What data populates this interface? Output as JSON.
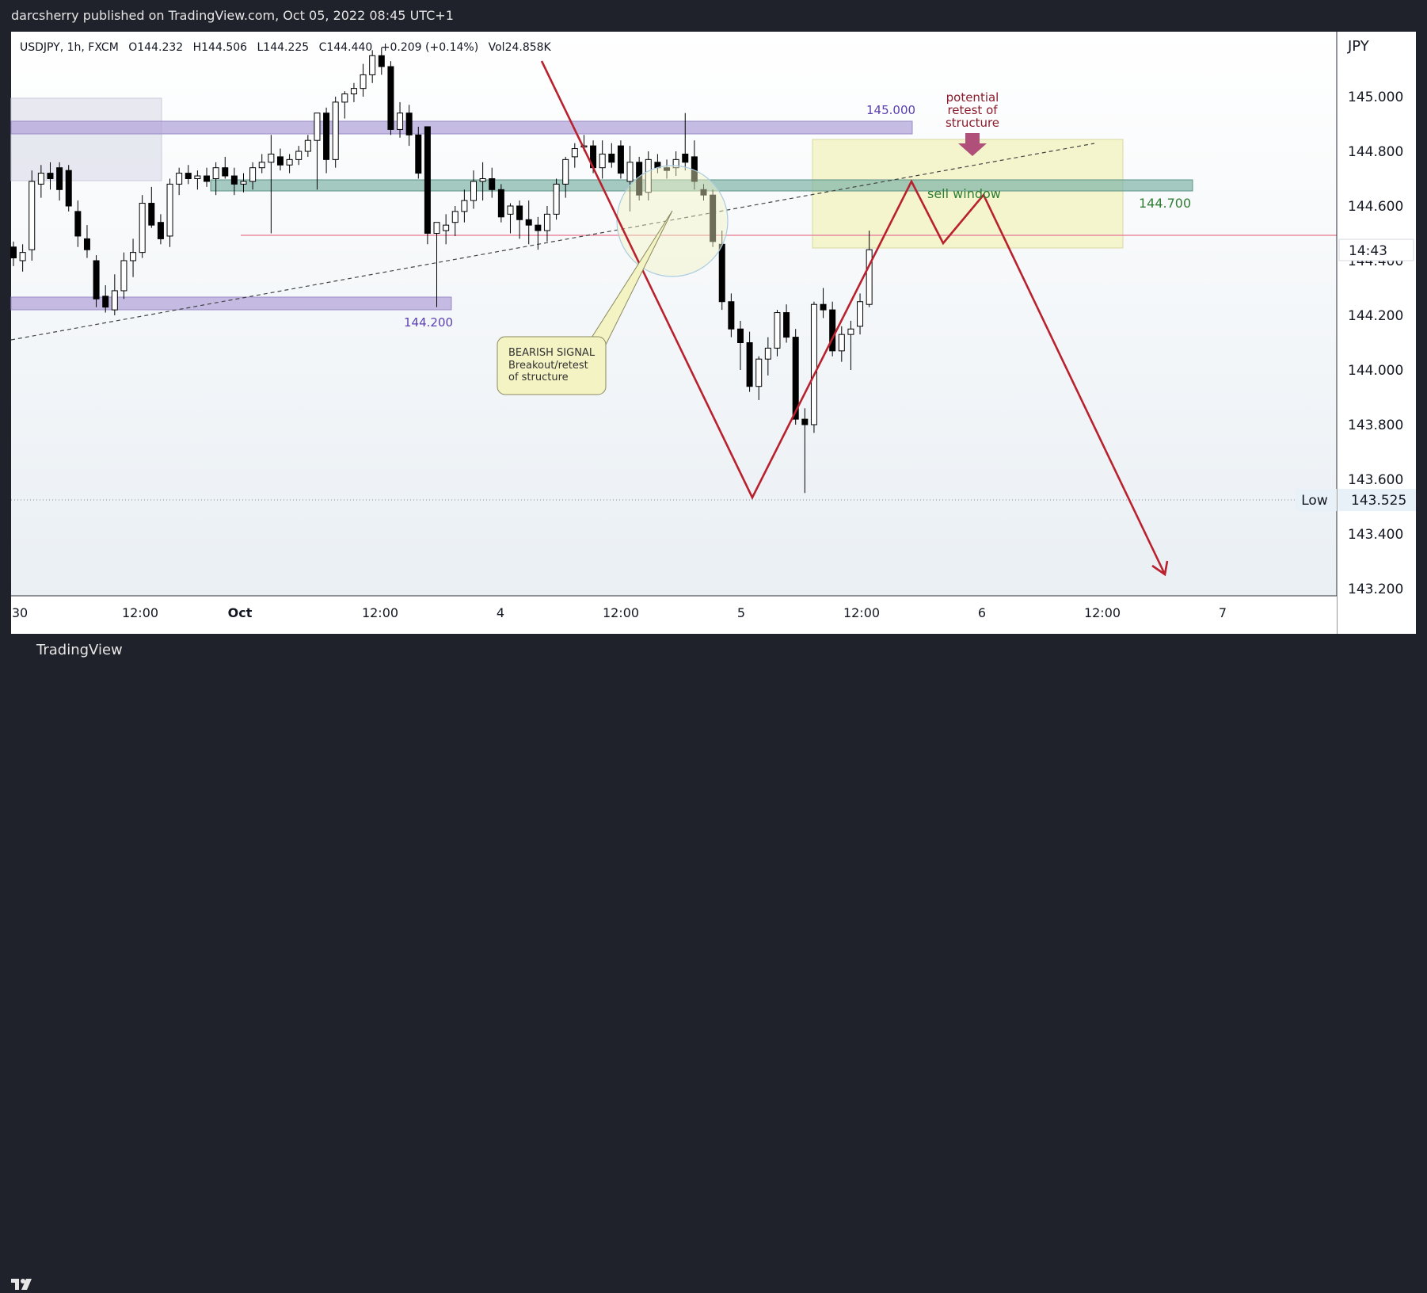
{
  "header": {
    "published": "darcsherry published on TradingView.com, Oct 05, 2022 08:45 UTC+1"
  },
  "legend": {
    "symbol": "USDJPY, 1h, FXCM",
    "open": "O144.232",
    "high": "H144.506",
    "low": "L144.225",
    "close": "C144.440",
    "change": "+0.209 (+0.14%)",
    "volume": "Vol24.858K"
  },
  "price_axis": {
    "currency": "JPY",
    "ticks": [
      "145.000",
      "144.800",
      "144.600",
      "144.400",
      "144.200",
      "144.000",
      "143.800",
      "143.600",
      "143.400",
      "143.200"
    ],
    "current_time": "14:43",
    "low_label": "Low",
    "low_value": "143.525"
  },
  "time_axis": {
    "ticks": [
      "30",
      "12:00",
      "Oct",
      "12:00",
      "4",
      "12:00",
      "5",
      "12:00",
      "6",
      "12:00",
      "7"
    ]
  },
  "annotations": {
    "zone_145": "145.000",
    "zone_1442": "144.200",
    "zone_1447": "144.700",
    "sell_window": "sell window",
    "retest_line1": "potential",
    "retest_line2": "retest of",
    "retest_line3": "structure",
    "signal_line1": "BEARISH SIGNAL",
    "signal_line2": "Breakout/retest",
    "signal_line3": "of structure"
  },
  "branding": {
    "logo": "TradingView"
  },
  "colors": {
    "bg_top": "#ffffff",
    "bg_bottom": "#e8eef3",
    "candle": "#000000",
    "purple_zone": "#b3a6d9",
    "teal_zone": "#7fb3a8",
    "projection": "#b8212d",
    "sell_box": "#f3f3c4",
    "label_purple": "#5b3fb0",
    "label_green": "#2e7d32",
    "label_maroon": "#8b1a2b"
  },
  "chart_data": {
    "type": "candlestick",
    "symbol": "USDJPY",
    "interval": "1h",
    "ylim": [
      143.15,
      145.2
    ],
    "candles": [
      [
        144.45,
        144.47,
        144.38,
        144.41
      ],
      [
        144.4,
        144.46,
        144.36,
        144.43
      ],
      [
        144.44,
        144.73,
        144.4,
        144.69
      ],
      [
        144.68,
        144.75,
        144.63,
        144.72
      ],
      [
        144.72,
        144.76,
        144.66,
        144.7
      ],
      [
        144.74,
        144.76,
        144.62,
        144.66
      ],
      [
        144.73,
        144.75,
        144.58,
        144.6
      ],
      [
        144.58,
        144.62,
        144.45,
        144.49
      ],
      [
        144.48,
        144.53,
        144.41,
        144.44
      ],
      [
        144.4,
        144.42,
        144.23,
        144.26
      ],
      [
        144.27,
        144.31,
        144.21,
        144.23
      ],
      [
        144.22,
        144.35,
        144.2,
        144.29
      ],
      [
        144.29,
        144.43,
        144.26,
        144.4
      ],
      [
        144.4,
        144.48,
        144.34,
        144.43
      ],
      [
        144.43,
        144.64,
        144.41,
        144.61
      ],
      [
        144.61,
        144.67,
        144.52,
        144.53
      ],
      [
        144.54,
        144.57,
        144.46,
        144.48
      ],
      [
        144.49,
        144.7,
        144.45,
        144.68
      ],
      [
        144.68,
        144.74,
        144.64,
        144.72
      ],
      [
        144.72,
        144.75,
        144.68,
        144.7
      ],
      [
        144.7,
        144.73,
        144.66,
        144.71
      ],
      [
        144.71,
        144.74,
        144.67,
        144.69
      ],
      [
        144.7,
        144.76,
        144.64,
        144.74
      ],
      [
        144.74,
        144.78,
        144.7,
        144.71
      ],
      [
        144.71,
        144.74,
        144.64,
        144.68
      ],
      [
        144.68,
        144.72,
        144.65,
        144.69
      ],
      [
        144.69,
        144.76,
        144.66,
        144.74
      ],
      [
        144.74,
        144.79,
        144.72,
        144.76
      ],
      [
        144.76,
        144.86,
        144.5,
        144.79
      ],
      [
        144.78,
        144.81,
        144.73,
        144.75
      ],
      [
        144.75,
        144.79,
        144.72,
        144.77
      ],
      [
        144.77,
        144.82,
        144.75,
        144.8
      ],
      [
        144.8,
        144.86,
        144.78,
        144.84
      ],
      [
        144.84,
        144.93,
        144.66,
        144.94
      ],
      [
        144.94,
        144.96,
        144.72,
        144.77
      ],
      [
        144.77,
        145.0,
        144.74,
        144.98
      ],
      [
        144.98,
        145.02,
        144.92,
        145.01
      ],
      [
        145.01,
        145.05,
        144.98,
        145.03
      ],
      [
        145.03,
        145.12,
        145.0,
        145.08
      ],
      [
        145.08,
        145.17,
        145.05,
        145.15
      ],
      [
        145.15,
        145.18,
        145.08,
        145.11
      ],
      [
        145.11,
        145.13,
        144.86,
        144.88
      ],
      [
        144.88,
        144.98,
        144.85,
        144.94
      ],
      [
        144.94,
        144.97,
        144.82,
        144.86
      ],
      [
        144.86,
        144.89,
        144.7,
        144.72
      ],
      [
        144.89,
        144.89,
        144.46,
        144.5
      ],
      [
        144.5,
        144.53,
        144.23,
        144.54
      ],
      [
        144.51,
        144.57,
        144.46,
        144.53
      ],
      [
        144.54,
        144.6,
        144.49,
        144.58
      ],
      [
        144.58,
        144.66,
        144.54,
        144.62
      ],
      [
        144.62,
        144.73,
        144.59,
        144.69
      ],
      [
        144.69,
        144.76,
        144.62,
        144.7
      ],
      [
        144.7,
        144.74,
        144.63,
        144.66
      ],
      [
        144.66,
        144.68,
        144.54,
        144.56
      ],
      [
        144.57,
        144.61,
        144.5,
        144.6
      ],
      [
        144.6,
        144.62,
        144.48,
        144.55
      ],
      [
        144.55,
        144.62,
        144.46,
        144.53
      ],
      [
        144.53,
        144.56,
        144.44,
        144.51
      ],
      [
        144.51,
        144.6,
        144.47,
        144.57
      ],
      [
        144.57,
        144.7,
        144.55,
        144.68
      ],
      [
        144.68,
        144.78,
        144.63,
        144.77
      ],
      [
        144.78,
        144.83,
        144.74,
        144.81
      ],
      [
        144.82,
        144.86,
        144.8,
        144.82
      ],
      [
        144.82,
        144.84,
        144.72,
        144.74
      ],
      [
        144.74,
        144.84,
        144.7,
        144.79
      ],
      [
        144.79,
        144.83,
        144.74,
        144.76
      ],
      [
        144.82,
        144.84,
        144.7,
        144.72
      ],
      [
        144.69,
        144.82,
        144.58,
        144.76
      ],
      [
        144.76,
        144.78,
        144.62,
        144.64
      ],
      [
        144.65,
        144.8,
        144.62,
        144.77
      ],
      [
        144.76,
        144.79,
        144.72,
        144.74
      ],
      [
        144.74,
        144.77,
        144.7,
        144.73
      ],
      [
        144.74,
        144.8,
        144.71,
        144.77
      ],
      [
        144.79,
        144.94,
        144.73,
        144.76
      ],
      [
        144.78,
        144.84,
        144.66,
        144.69
      ],
      [
        144.66,
        144.68,
        144.62,
        144.64
      ],
      [
        144.64,
        144.66,
        144.45,
        144.47
      ],
      [
        144.46,
        144.51,
        144.22,
        144.25
      ],
      [
        144.25,
        144.28,
        144.12,
        144.15
      ],
      [
        144.15,
        144.18,
        144.0,
        144.1
      ],
      [
        144.1,
        144.14,
        143.92,
        143.94
      ],
      [
        143.94,
        144.05,
        143.89,
        144.04
      ],
      [
        144.04,
        144.12,
        143.98,
        144.08
      ],
      [
        144.08,
        144.22,
        144.05,
        144.21
      ],
      [
        144.21,
        144.24,
        144.1,
        144.12
      ],
      [
        144.12,
        144.15,
        143.8,
        143.82
      ],
      [
        143.82,
        143.86,
        143.55,
        143.8
      ],
      [
        143.8,
        144.25,
        143.77,
        144.24
      ],
      [
        144.24,
        144.3,
        144.19,
        144.22
      ],
      [
        144.22,
        144.25,
        144.05,
        144.07
      ],
      [
        144.07,
        144.16,
        144.03,
        144.13
      ],
      [
        144.13,
        144.18,
        144.0,
        144.15
      ],
      [
        144.16,
        144.28,
        144.13,
        144.25
      ],
      [
        144.24,
        144.51,
        144.23,
        144.44
      ]
    ]
  }
}
